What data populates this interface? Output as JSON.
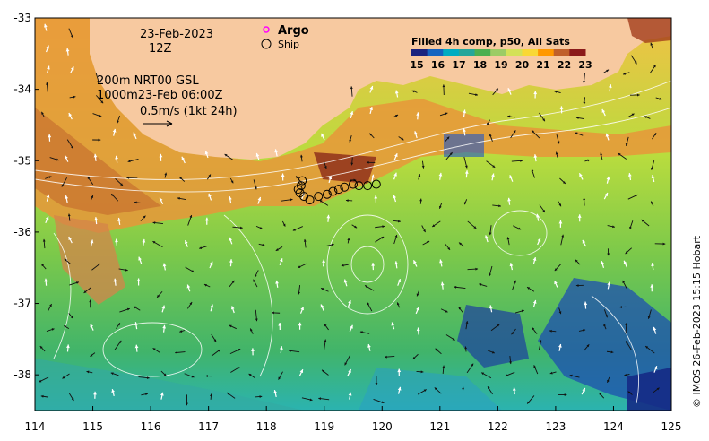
{
  "map": {
    "date_label": "23-Feb-2023",
    "time_label": "12Z",
    "legend_argo": "Argo",
    "legend_ship": "Ship",
    "current_line1": "200m  NRT00 GSL",
    "current_line2": "1000m23-Feb 06:00Z",
    "vector_scale_label": "0.5m/s (1kt 24h)",
    "credit": "© IMOS 26-Feb-2023 15:15 Hobart",
    "lon_ticks": [
      "114",
      "115",
      "116",
      "117",
      "118",
      "119",
      "120",
      "121",
      "122",
      "123",
      "124",
      "125"
    ],
    "lat_ticks": [
      "-33",
      "-34",
      "-35",
      "-36",
      "-37",
      "-38"
    ],
    "lon_range": [
      114,
      125
    ],
    "lat_range": [
      -38.5,
      -33
    ]
  },
  "colorbar": {
    "title": "Filled 4h comp, p50, All Sats",
    "ticks": [
      "15",
      "16",
      "17",
      "18",
      "19",
      "20",
      "21",
      "22",
      "23"
    ],
    "colors": [
      "#1a237e",
      "#1565c0",
      "#00acc1",
      "#26a69a",
      "#4caf50",
      "#9ccc65",
      "#d4e157",
      "#f9d835",
      "#ff9800",
      "#c0602a",
      "#8b1a1a"
    ]
  },
  "colors": {
    "land": "#f7c9a0",
    "ship_marker": "#000000",
    "argo_marker": "#ff00ff"
  },
  "ship_track": [
    {
      "lon": 118.55,
      "lat": -35.4
    },
    {
      "lon": 118.6,
      "lat": -35.35
    },
    {
      "lon": 118.62,
      "lat": -35.28
    },
    {
      "lon": 118.58,
      "lat": -35.45
    },
    {
      "lon": 118.65,
      "lat": -35.5
    },
    {
      "lon": 118.75,
      "lat": -35.55
    },
    {
      "lon": 118.9,
      "lat": -35.5
    },
    {
      "lon": 119.05,
      "lat": -35.47
    },
    {
      "lon": 119.15,
      "lat": -35.43
    },
    {
      "lon": 119.25,
      "lat": -35.4
    },
    {
      "lon": 119.35,
      "lat": -35.37
    },
    {
      "lon": 119.5,
      "lat": -35.33
    },
    {
      "lon": 119.6,
      "lat": -35.35
    },
    {
      "lon": 119.75,
      "lat": -35.35
    },
    {
      "lon": 119.9,
      "lat": -35.33
    }
  ]
}
